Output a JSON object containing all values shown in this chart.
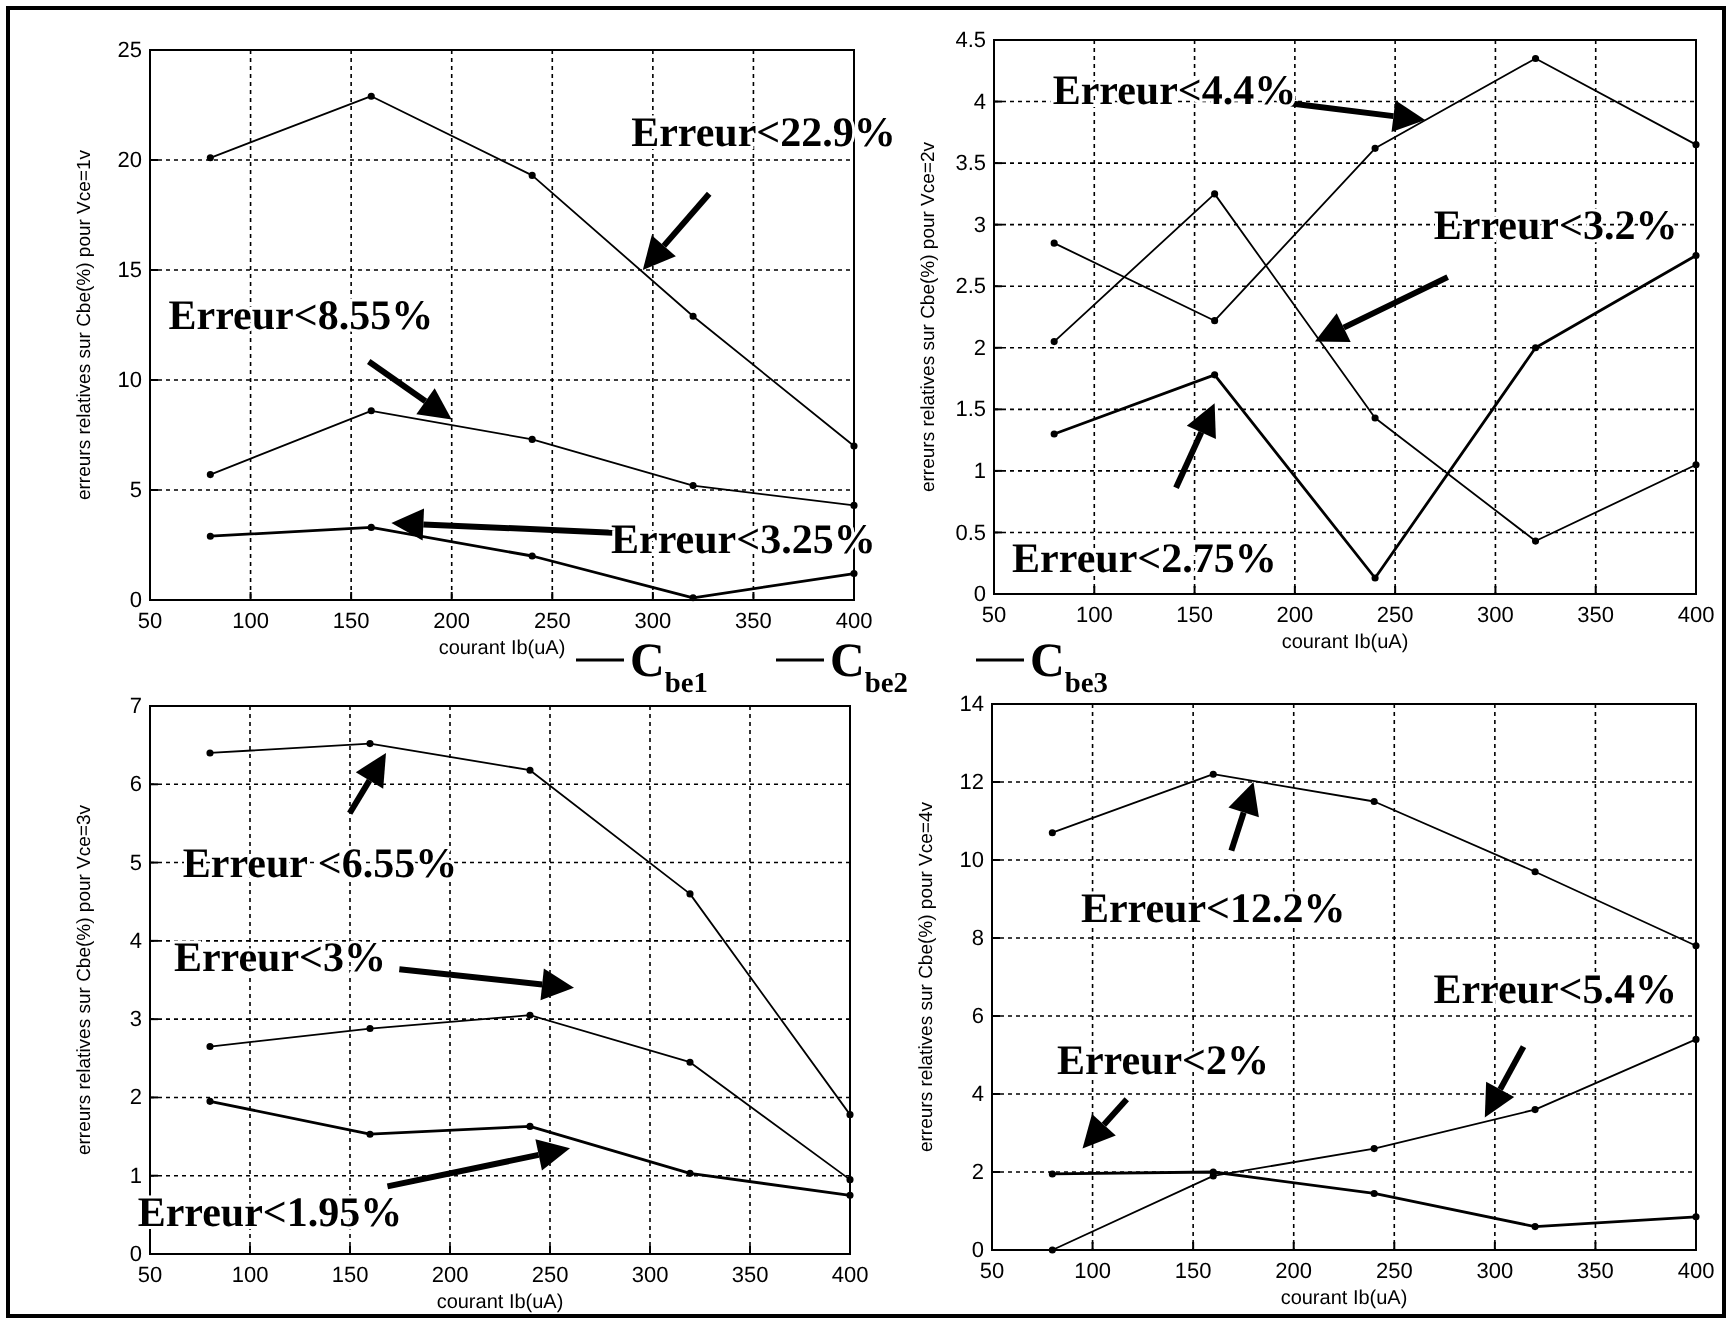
{
  "chart_data": [
    {
      "type": "line",
      "xlabel": "courant Ib(uA)",
      "ylabel": "erreurs relatives sur Cbe(%) pour Vce=1v",
      "x": [
        80,
        160,
        240,
        320,
        400
      ],
      "xlim": [
        50,
        400
      ],
      "xticks": [
        50,
        100,
        150,
        200,
        250,
        300,
        350,
        400
      ],
      "ylim": [
        0,
        25
      ],
      "yticks": [
        0,
        5,
        10,
        15,
        20,
        25
      ],
      "grid": true,
      "marker": "circle",
      "line_style": "solid",
      "legend": "bottom",
      "series": [
        {
          "name": "C$_{be1}$",
          "color": "#000000",
          "values": [
            20.1,
            22.9,
            19.3,
            12.9,
            7.0
          ]
        },
        {
          "name": "C$_{be2}$",
          "color": "#000000",
          "values": [
            5.7,
            8.6,
            7.3,
            5.2,
            4.3
          ]
        },
        {
          "name": "C$_{be3}$",
          "color": "#000000",
          "values": [
            2.9,
            3.3,
            2.0,
            0.1,
            1.2
          ]
        }
      ],
      "annotations": [
        "Erreur<22.9%",
        "Erreur<8.55%",
        "Erreur<3.25%"
      ]
    },
    {
      "type": "line",
      "xlabel": "courant Ib(uA)",
      "ylabel": "erreurs relatives sur Cbe(%) pour Vce=2v",
      "x": [
        80,
        160,
        240,
        320,
        400
      ],
      "xlim": [
        50,
        400
      ],
      "xticks": [
        50,
        100,
        150,
        200,
        250,
        300,
        350,
        400
      ],
      "ylim": [
        0,
        4.5
      ],
      "yticks": [
        0,
        0.5,
        1,
        1.5,
        2,
        2.5,
        3,
        3.5,
        4,
        4.5
      ],
      "grid": true,
      "marker": "circle",
      "line_style": "solid",
      "series": [
        {
          "color": "#000000",
          "values": [
            2.85,
            2.22,
            3.62,
            4.35,
            3.65
          ]
        },
        {
          "color": "#000000",
          "values": [
            2.05,
            3.25,
            1.43,
            0.43,
            1.05
          ]
        },
        {
          "color": "#000000",
          "values": [
            1.3,
            1.78,
            0.13,
            2.0,
            2.75
          ]
        }
      ],
      "annotations": [
        "Erreur<4.4%",
        "Erreur<3.2%",
        "Erreur<2.75%"
      ]
    },
    {
      "type": "line",
      "xlabel": "courant Ib(uA)",
      "ylabel": "erreurs relatives sur Cbe(%) pour Vce=3v",
      "x": [
        80,
        160,
        240,
        320,
        400
      ],
      "xlim": [
        50,
        400
      ],
      "xticks": [
        50,
        100,
        150,
        200,
        250,
        300,
        350,
        400
      ],
      "ylim": [
        0,
        7
      ],
      "yticks": [
        0,
        1,
        2,
        3,
        4,
        5,
        6,
        7
      ],
      "grid": true,
      "marker": "circle",
      "line_style": "solid",
      "series": [
        {
          "color": "#000000",
          "values": [
            6.4,
            6.52,
            6.18,
            4.6,
            1.78
          ]
        },
        {
          "color": "#000000",
          "values": [
            2.65,
            2.88,
            3.05,
            2.45,
            0.95
          ]
        },
        {
          "color": "#000000",
          "values": [
            1.95,
            1.53,
            1.63,
            1.03,
            0.75
          ]
        }
      ],
      "annotations": [
        "Erreur <6.55%",
        "Erreur<3%",
        "Erreur<1.95%"
      ]
    },
    {
      "type": "line",
      "xlabel": "courant Ib(uA)",
      "ylabel": "erreurs relatives sur Cbe(%) pour Vce=4v",
      "x": [
        80,
        160,
        240,
        320,
        400
      ],
      "xlim": [
        50,
        400
      ],
      "xticks": [
        50,
        100,
        150,
        200,
        250,
        300,
        350,
        400
      ],
      "ylim": [
        0,
        14
      ],
      "yticks": [
        0,
        2,
        4,
        6,
        8,
        10,
        12,
        14
      ],
      "grid": true,
      "marker": "circle",
      "line_style": "solid",
      "series": [
        {
          "color": "#000000",
          "values": [
            10.7,
            12.2,
            11.5,
            9.7,
            7.8
          ]
        },
        {
          "color": "#000000",
          "values": [
            0,
            1.9,
            2.6,
            3.6,
            5.4
          ]
        },
        {
          "color": "#000000",
          "values": [
            1.95,
            2.0,
            1.45,
            0.6,
            0.85
          ]
        }
      ],
      "annotations": [
        "Erreur<12.2%",
        "Erreur<5.4%",
        "Erreur<2%"
      ]
    }
  ]
}
